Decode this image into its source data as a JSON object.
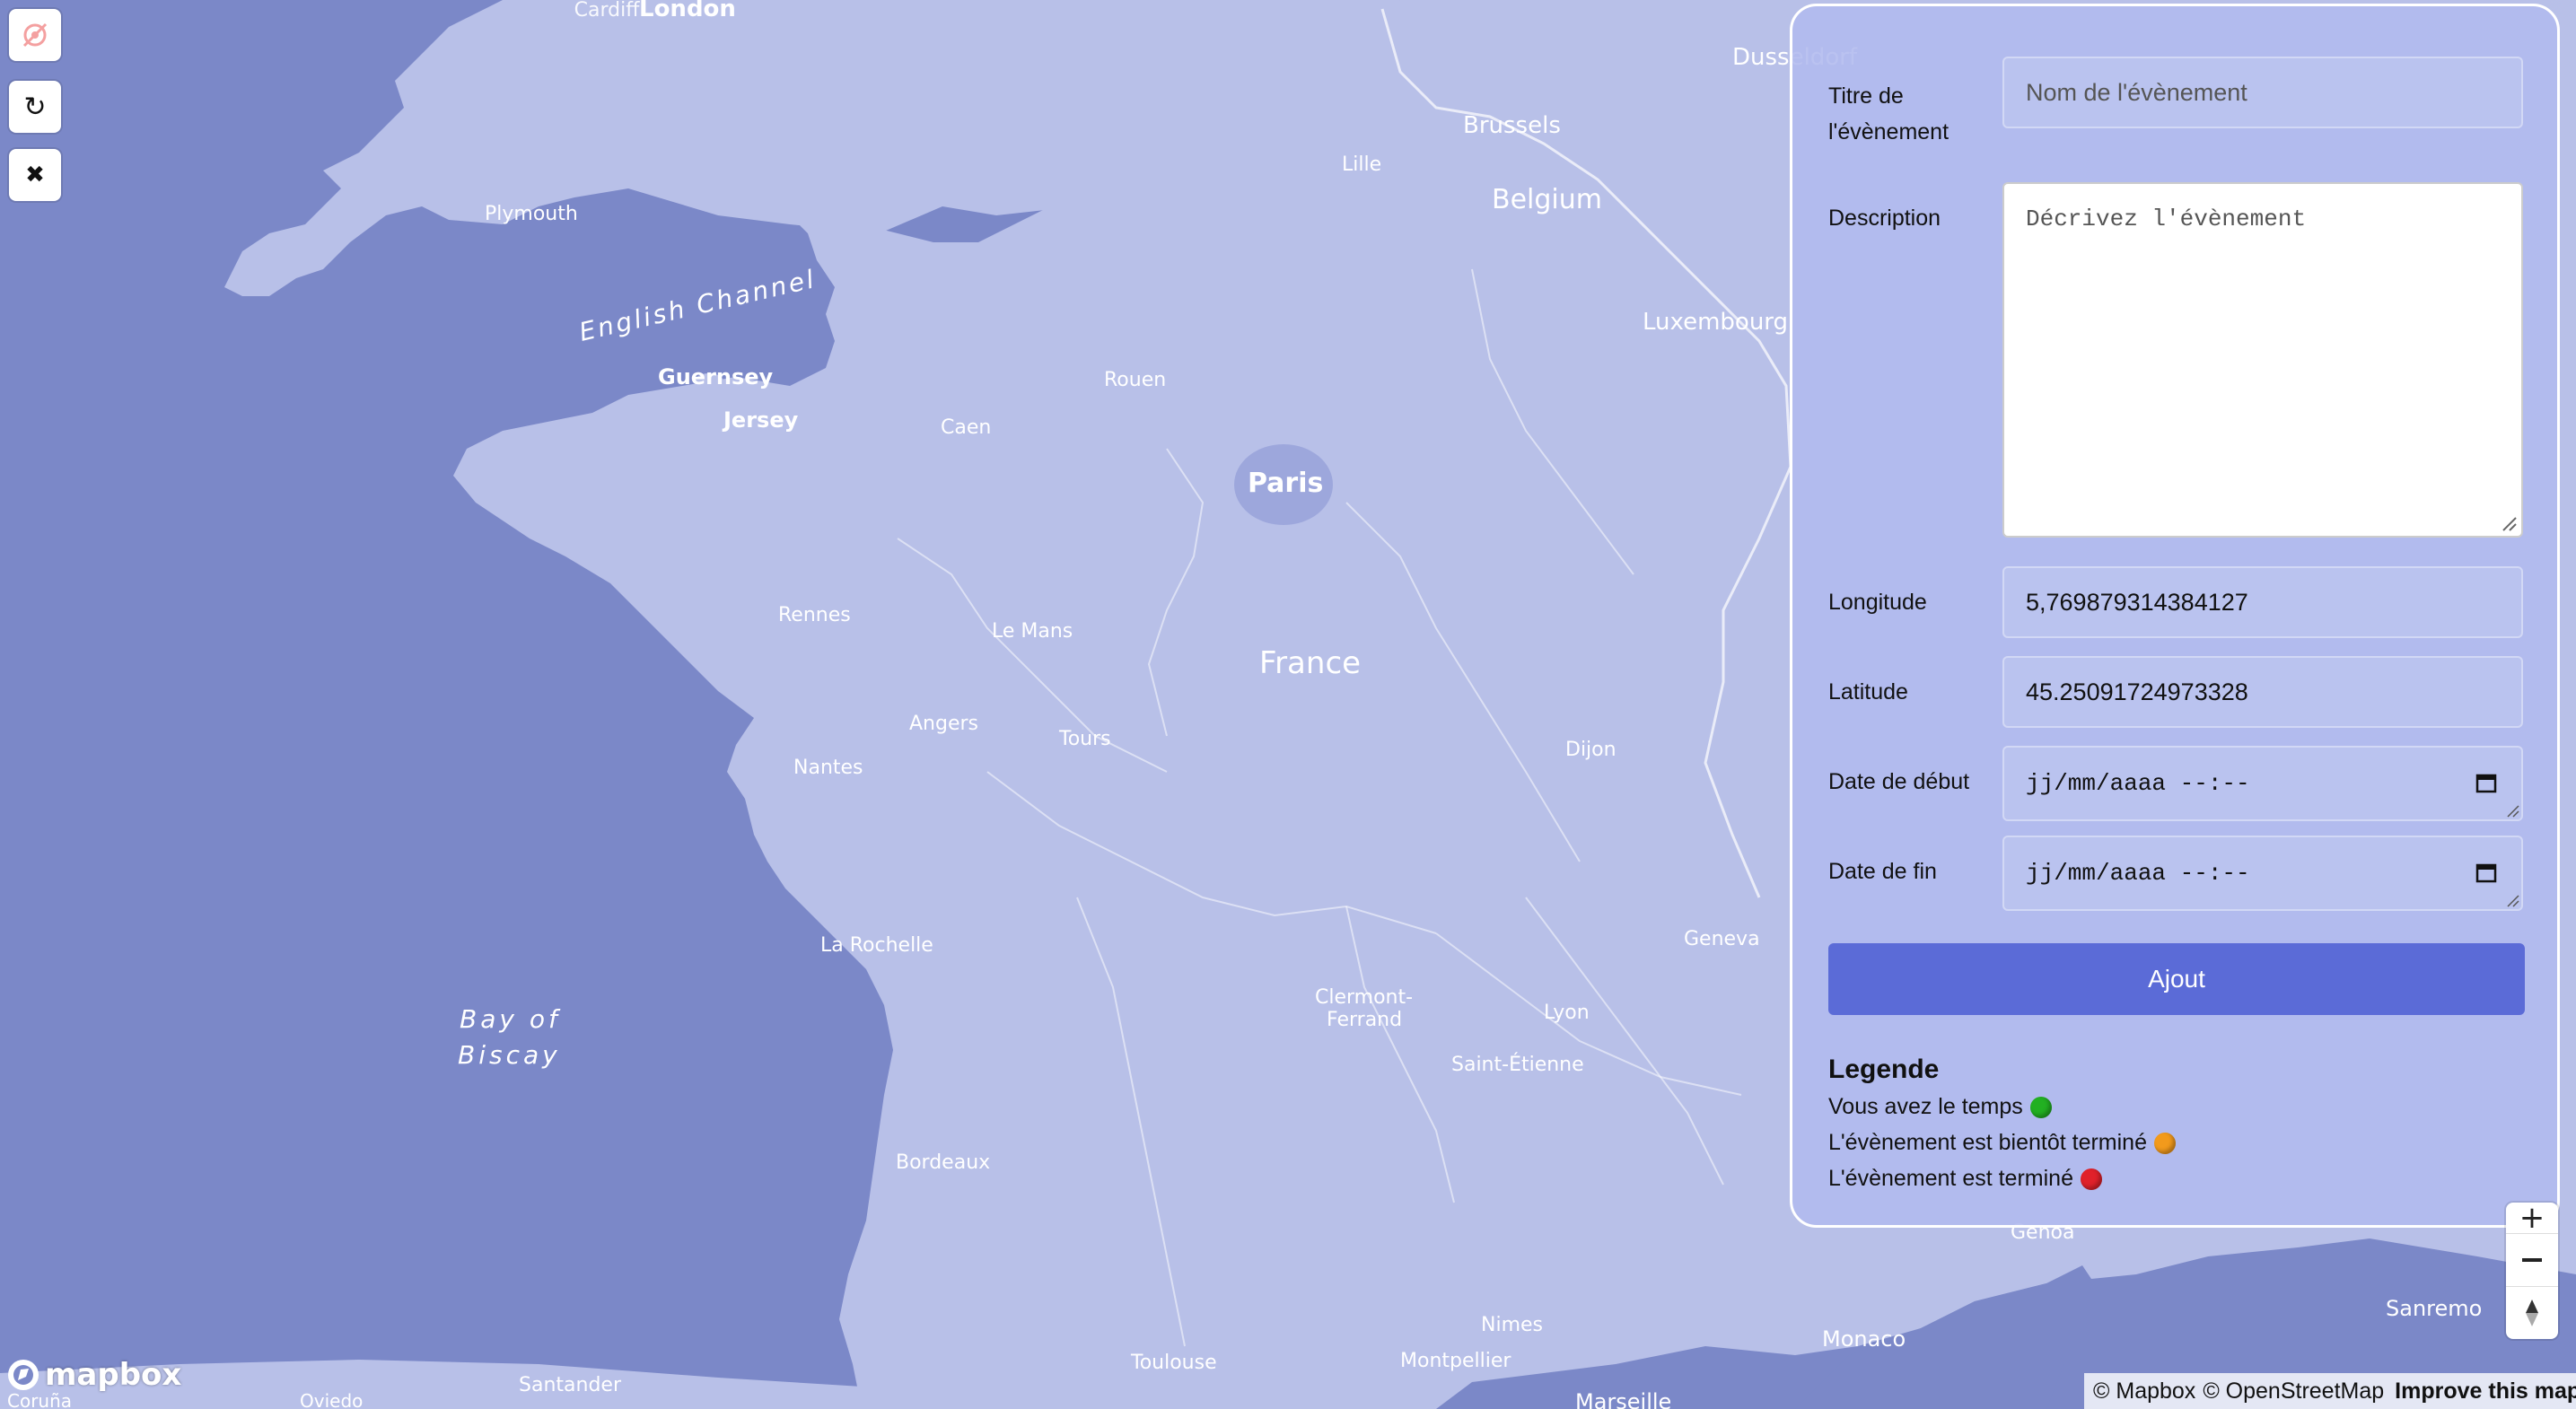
{
  "map": {
    "labels": {
      "london": "London",
      "cardiff": "Cardiff",
      "plymouth": "Plymouth",
      "english_channel": "English Channel",
      "guernsey": "Guernsey",
      "jersey": "Jersey",
      "caen": "Caen",
      "rouen": "Rouen",
      "paris": "Paris",
      "lille": "Lille",
      "brussels": "Brussels",
      "belgium": "Belgium",
      "luxembourg": "Luxembourg",
      "dusseldorf": "Dusseldorf",
      "rennes": "Rennes",
      "le_mans": "Le Mans",
      "france": "France",
      "angers": "Angers",
      "tours": "Tours",
      "nantes": "Nantes",
      "dijon": "Dijon",
      "la_rochelle": "La Rochelle",
      "bay_of_biscay_1": "Bay of",
      "bay_of_biscay_2": "Biscay",
      "clermont_1": "Clermont-",
      "clermont_2": "Ferrand",
      "lyon": "Lyon",
      "saint_etienne": "Saint-Étienne",
      "geneva": "Geneva",
      "bordeaux": "Bordeaux",
      "toulouse": "Toulouse",
      "montpellier": "Montpellier",
      "nimes": "Nimes",
      "marseille": "Marseille",
      "monaco": "Monaco",
      "sanremo": "Sanremo",
      "genoa": "Genoa",
      "santander": "Santander",
      "oviedo": "Oviedo",
      "coruna": "Coruña"
    }
  },
  "controls": {
    "locate_icon": "locate-off-icon",
    "refresh_symbol": "↻",
    "close_symbol": "✖"
  },
  "form": {
    "title_label": "Titre de l'évènement",
    "title_placeholder": "Nom de l'évènement",
    "description_label": "Description",
    "description_placeholder": "Décrivez l'évènement",
    "longitude_label": "Longitude",
    "longitude_value": "5,769879314384127",
    "latitude_label": "Latitude",
    "latitude_value": "45.25091724973328",
    "start_label": "Date de début",
    "start_placeholder": "jj/mm/aaaa --:--",
    "end_label": "Date de fin",
    "end_placeholder": "jj/mm/aaaa --:--",
    "submit_label": "Ajout"
  },
  "legend": {
    "title": "Legende",
    "items": [
      {
        "text": "Vous avez le temps",
        "color": "#22b022"
      },
      {
        "text": "L'évènement est bientôt terminé",
        "color": "#f29a1c"
      },
      {
        "text": "L'évènement est terminé",
        "color": "#e0212a"
      }
    ]
  },
  "attribution": {
    "mapbox": "© Mapbox",
    "osm": "© OpenStreetMap",
    "improve": "Improve this map"
  },
  "logo_text": "mapbox",
  "colors": {
    "water": "#7b88c8",
    "land": "#b8c0e8",
    "accent": "#5b6bd7"
  }
}
